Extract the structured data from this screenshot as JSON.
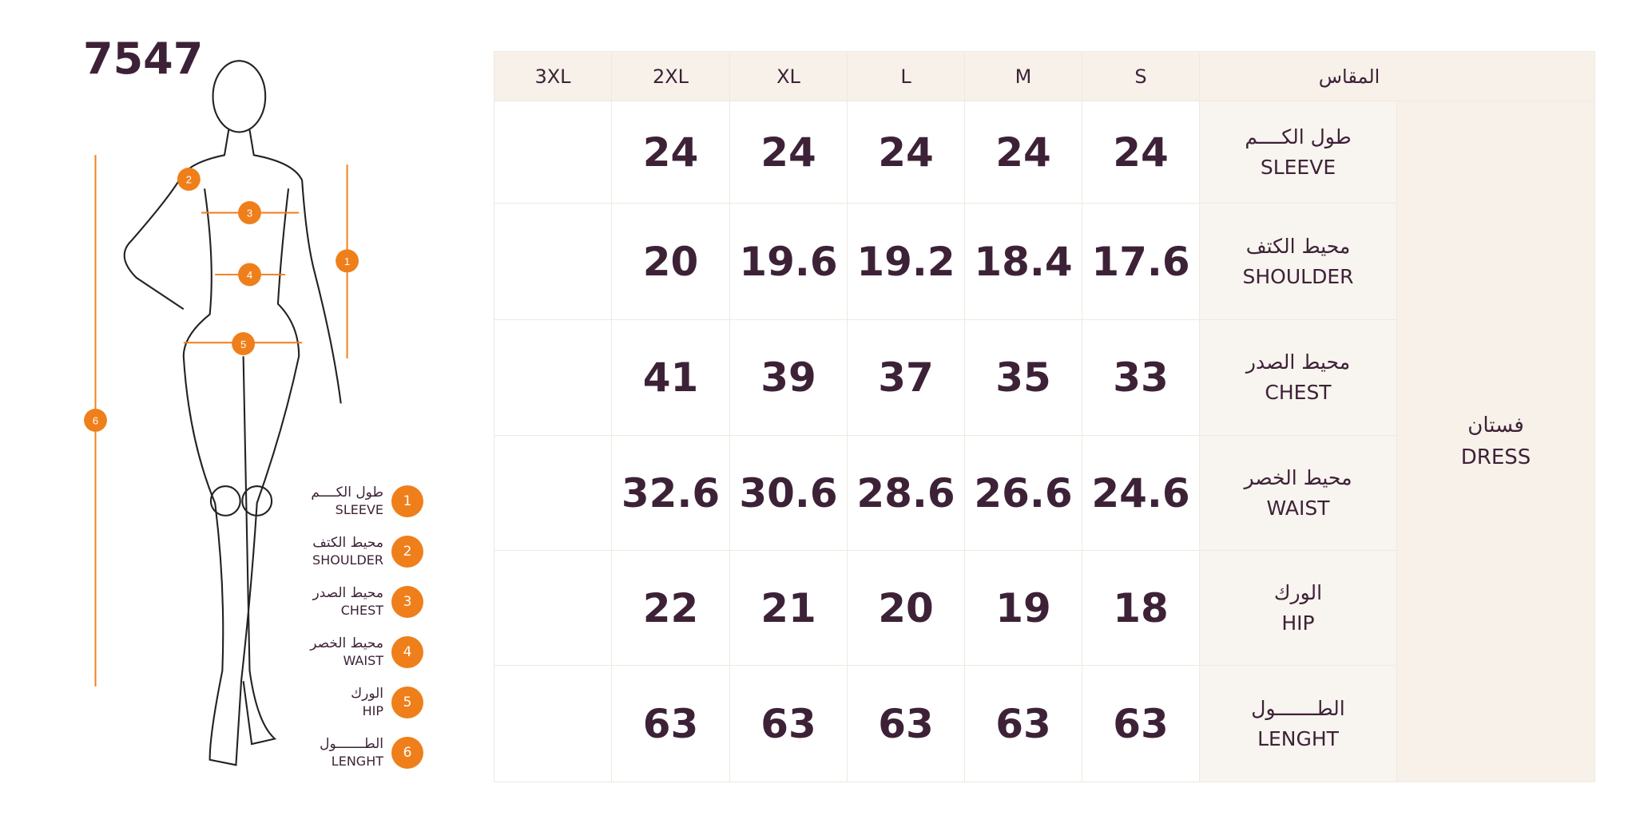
{
  "product_code": "7547",
  "colors": {
    "accent": "#ef7f1a",
    "text": "#3d2237",
    "header_bg": "#f7f1ea"
  },
  "legend": [
    {
      "num": "1",
      "ar": "طول الكــــم",
      "en": "SLEEVE"
    },
    {
      "num": "2",
      "ar": "محيط الكتف",
      "en": "SHOULDER"
    },
    {
      "num": "3",
      "ar": "محيط الصدر",
      "en": "CHEST"
    },
    {
      "num": "4",
      "ar": "محيط الخصر",
      "en": "WAIST"
    },
    {
      "num": "5",
      "ar": "الورك",
      "en": "HIP"
    },
    {
      "num": "6",
      "ar": "الطـــــــول",
      "en": "LENGHT"
    }
  ],
  "table": {
    "header_label": "المقاس",
    "sizes": [
      "3XL",
      "2XL",
      "XL",
      "L",
      "M",
      "S"
    ],
    "category": {
      "ar": "فستان",
      "en": "DRESS"
    },
    "rows": [
      {
        "ar": "طول الكــــم",
        "en": "SLEEVE",
        "values": [
          "",
          "24",
          "24",
          "24",
          "24",
          "24"
        ]
      },
      {
        "ar": "محيط الكتف",
        "en": "SHOULDER",
        "values": [
          "",
          "20",
          "19.6",
          "19.2",
          "18.4",
          "17.6"
        ]
      },
      {
        "ar": "محيط الصدر",
        "en": "CHEST",
        "values": [
          "",
          "41",
          "39",
          "37",
          "35",
          "33"
        ]
      },
      {
        "ar": "محيط الخصر",
        "en": "WAIST",
        "values": [
          "",
          "32.6",
          "30.6",
          "28.6",
          "26.6",
          "24.6"
        ]
      },
      {
        "ar": "الورك",
        "en": "HIP",
        "values": [
          "",
          "22",
          "21",
          "20",
          "19",
          "18"
        ]
      },
      {
        "ar": "الطـــــــول",
        "en": "LENGHT",
        "values": [
          "",
          "63",
          "63",
          "63",
          "63",
          "63"
        ]
      }
    ]
  }
}
